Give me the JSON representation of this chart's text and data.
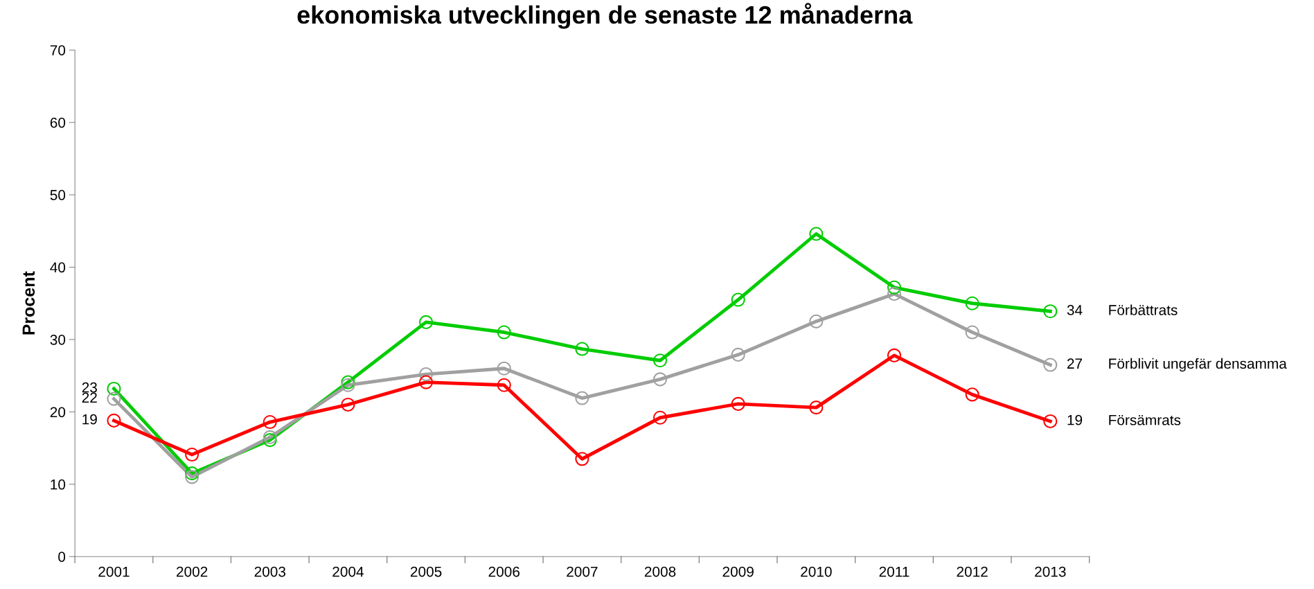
{
  "chart_data": {
    "type": "line",
    "title": "ekonomiska utvecklingen de senaste 12 månaderna",
    "ylabel": "Procent",
    "categories": [
      "2001",
      "2002",
      "2003",
      "2004",
      "2005",
      "2006",
      "2007",
      "2008",
      "2009",
      "2010",
      "2011",
      "2012",
      "2013"
    ],
    "series": [
      {
        "name": "Förbättrats",
        "color": "#00cc00",
        "values": [
          23.2,
          11.5,
          16.1,
          24.1,
          32.4,
          31.0,
          28.7,
          27.1,
          35.5,
          44.6,
          37.2,
          35.0,
          33.9
        ]
      },
      {
        "name": "Förblivit ungefär densamma",
        "color": "#a0a0a0",
        "values": [
          21.8,
          11.0,
          16.5,
          23.7,
          25.2,
          26.0,
          21.9,
          24.5,
          27.9,
          32.5,
          36.3,
          31.0,
          26.5
        ]
      },
      {
        "name": "Försämrats",
        "color": "#ff0000",
        "values": [
          18.8,
          14.1,
          18.6,
          21.0,
          24.1,
          23.7,
          13.5,
          19.2,
          21.1,
          20.6,
          27.8,
          22.4,
          18.7
        ]
      }
    ],
    "annotations": [
      {
        "text": "23",
        "x": "2001",
        "y": 23.2
      },
      {
        "text": "22",
        "x": "2001",
        "y": 21.8
      },
      {
        "text": "19",
        "x": "2001",
        "y": 18.8
      },
      {
        "text": "34",
        "x": "2013",
        "y": 33.9
      },
      {
        "text": "27",
        "x": "2013",
        "y": 26.5
      },
      {
        "text": "19",
        "x": "2013",
        "y": 18.7
      }
    ],
    "ylim": [
      0,
      70
    ],
    "yticks": [
      0,
      10,
      20,
      30,
      40,
      50,
      60,
      70
    ],
    "grid": false,
    "legend": false,
    "marker": "circle",
    "line_style": "solid"
  }
}
